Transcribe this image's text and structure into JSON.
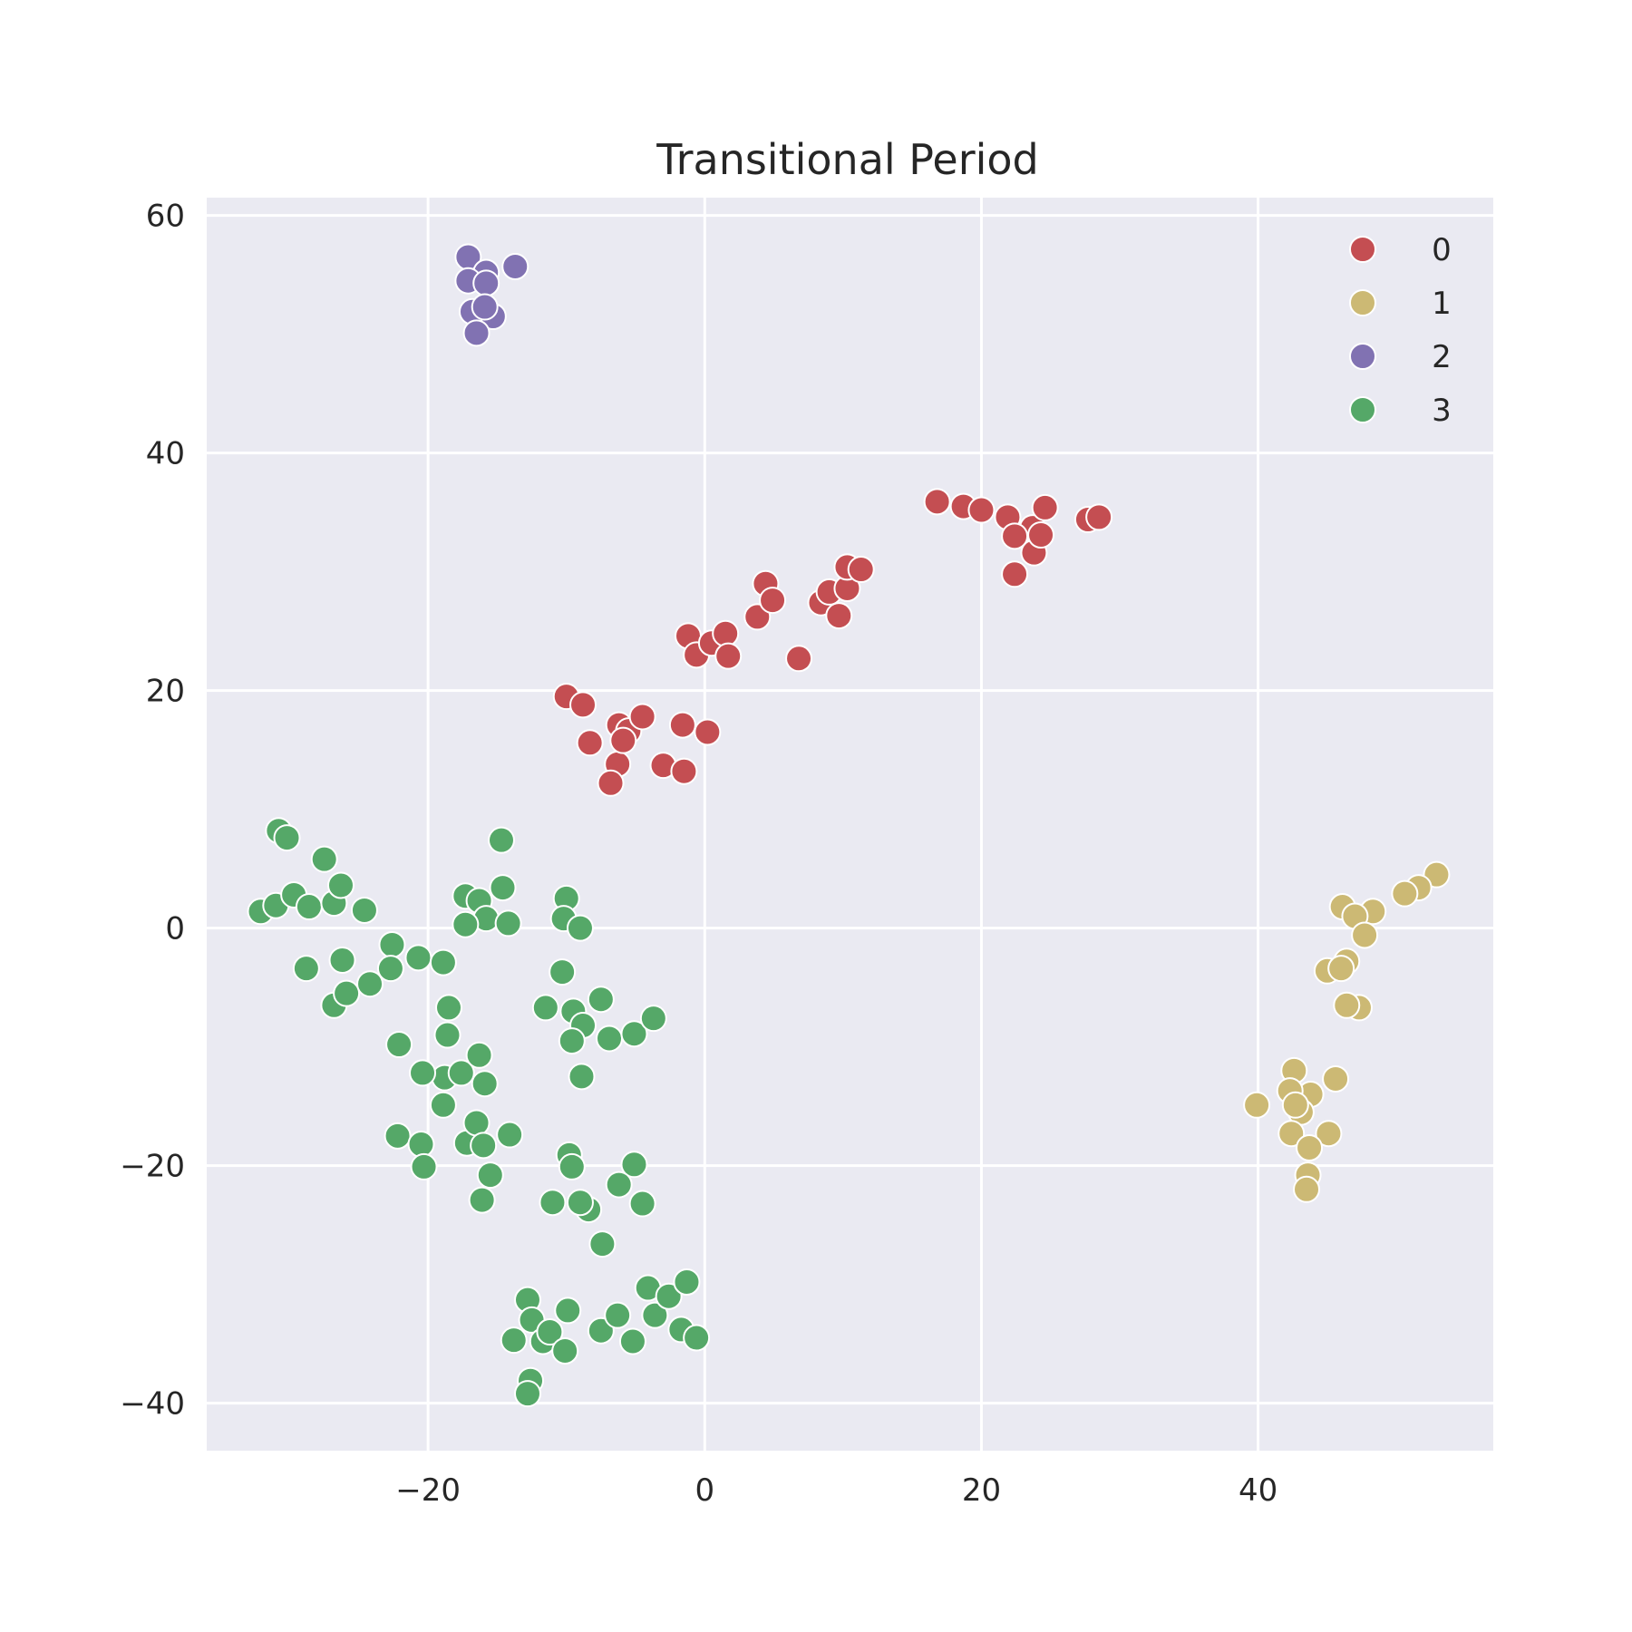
{
  "chart_data": {
    "type": "scatter",
    "title": "Transitional Period",
    "xlabel": "",
    "ylabel": "",
    "xlim": [
      -36,
      57
    ],
    "ylim": [
      -44,
      61.5
    ],
    "xticks": [
      -20,
      0,
      20,
      40
    ],
    "yticks": [
      -40,
      -20,
      0,
      20,
      40,
      60
    ],
    "xtick_labels": [
      "−20",
      "0",
      "20",
      "40"
    ],
    "ytick_labels": [
      "−40",
      "−20",
      "0",
      "20",
      "40",
      "60"
    ],
    "grid": true,
    "background": "#eaeaf2",
    "legend_position": "top-right",
    "series": [
      {
        "name": "0",
        "color": "#c44e52",
        "points": [
          [
            -10,
            19.5
          ],
          [
            -8.8,
            18.8
          ],
          [
            -8.3,
            15.6
          ],
          [
            -6.2,
            17.1
          ],
          [
            -5.5,
            16.6
          ],
          [
            -4.5,
            17.8
          ],
          [
            -6.3,
            13.8
          ],
          [
            -5.9,
            15.8
          ],
          [
            -6.8,
            12.2
          ],
          [
            -3,
            13.7
          ],
          [
            -1.5,
            13.2
          ],
          [
            -1.6,
            17.1
          ],
          [
            0.2,
            16.5
          ],
          [
            -1.2,
            24.6
          ],
          [
            -0.6,
            23
          ],
          [
            0.5,
            24
          ],
          [
            1.5,
            24.8
          ],
          [
            1.7,
            22.9
          ],
          [
            3.8,
            26.2
          ],
          [
            4.4,
            29
          ],
          [
            4.9,
            27.6
          ],
          [
            6.8,
            22.7
          ],
          [
            8.4,
            27.4
          ],
          [
            9.7,
            26.3
          ],
          [
            9,
            28.3
          ],
          [
            10.3,
            28.6
          ],
          [
            10.3,
            30.4
          ],
          [
            11.3,
            30.2
          ],
          [
            16.8,
            35.9
          ],
          [
            18.7,
            35.5
          ],
          [
            20,
            35.2
          ],
          [
            21.9,
            34.6
          ],
          [
            23.7,
            33.7
          ],
          [
            24.6,
            35.4
          ],
          [
            22.4,
            33
          ],
          [
            23.8,
            31.6
          ],
          [
            24.3,
            33.1
          ],
          [
            22.4,
            29.8
          ],
          [
            27.7,
            34.4
          ],
          [
            28.5,
            34.6
          ]
        ]
      },
      {
        "name": "1",
        "color": "#ccb974",
        "points": [
          [
            52.9,
            4.5
          ],
          [
            51.6,
            3.4
          ],
          [
            50.6,
            2.9
          ],
          [
            48.3,
            1.4
          ],
          [
            46.1,
            1.8
          ],
          [
            47,
            1
          ],
          [
            47.7,
            -0.6
          ],
          [
            46.4,
            -2.8
          ],
          [
            45,
            -3.6
          ],
          [
            46,
            -3.4
          ],
          [
            47.3,
            -6.7
          ],
          [
            46.4,
            -6.5
          ],
          [
            42.6,
            -12
          ],
          [
            45.6,
            -12.7
          ],
          [
            43.8,
            -14
          ],
          [
            42.3,
            -13.7
          ],
          [
            43.1,
            -15.5
          ],
          [
            42.7,
            -14.9
          ],
          [
            39.9,
            -14.9
          ],
          [
            42.4,
            -17.3
          ],
          [
            45.1,
            -17.3
          ],
          [
            43.7,
            -18.5
          ],
          [
            43.6,
            -20.8
          ],
          [
            43.5,
            -22
          ]
        ]
      },
      {
        "name": "2",
        "color": "#8172b2",
        "points": [
          [
            -17.1,
            56.5
          ],
          [
            -13.7,
            55.7
          ],
          [
            -15.8,
            55.2
          ],
          [
            -17.1,
            54.5
          ],
          [
            -15.8,
            54.3
          ],
          [
            -15.3,
            51.5
          ],
          [
            -16.8,
            51.9
          ],
          [
            -15.9,
            52.3
          ],
          [
            -16.5,
            50.1
          ]
        ]
      },
      {
        "name": "3",
        "color": "#55a868",
        "points": [
          [
            -30.8,
            8.2
          ],
          [
            -30.2,
            7.6
          ],
          [
            -27.5,
            5.8
          ],
          [
            -32.1,
            1.4
          ],
          [
            -31,
            1.9
          ],
          [
            -29.7,
            2.8
          ],
          [
            -28.6,
            1.8
          ],
          [
            -26.8,
            2.1
          ],
          [
            -26.3,
            3.6
          ],
          [
            -24.6,
            1.5
          ],
          [
            -28.8,
            -3.4
          ],
          [
            -26.2,
            -2.7
          ],
          [
            -26.8,
            -6.5
          ],
          [
            -25.9,
            -5.5
          ],
          [
            -24.2,
            -4.7
          ],
          [
            -22.6,
            -1.4
          ],
          [
            -22.7,
            -3.4
          ],
          [
            -20.7,
            -2.5
          ],
          [
            -18.9,
            -2.9
          ],
          [
            -18.8,
            -12.6
          ],
          [
            -20.4,
            -12.2
          ],
          [
            -17.6,
            -12.2
          ],
          [
            -18.5,
            -6.7
          ],
          [
            -18.6,
            -9
          ],
          [
            -22.1,
            -9.8
          ],
          [
            -16.3,
            -10.7
          ],
          [
            -15.9,
            -13.1
          ],
          [
            -18.9,
            -14.9
          ],
          [
            -22.2,
            -17.5
          ],
          [
            -20.5,
            -18.2
          ],
          [
            -20.3,
            -20.1
          ],
          [
            -17.2,
            -18.1
          ],
          [
            -16.5,
            -16.4
          ],
          [
            -16,
            -18.3
          ],
          [
            -15.5,
            -20.8
          ],
          [
            -16.1,
            -22.9
          ],
          [
            -14.1,
            -17.4
          ],
          [
            -17.3,
            2.7
          ],
          [
            -16.3,
            2.3
          ],
          [
            -15.8,
            0.8
          ],
          [
            -17.3,
            0.3
          ],
          [
            -14.6,
            3.4
          ],
          [
            -14.2,
            0.4
          ],
          [
            -14.7,
            7.4
          ],
          [
            -10,
            2.5
          ],
          [
            -10.2,
            0.8
          ],
          [
            -9,
            0
          ],
          [
            -10.3,
            -3.7
          ],
          [
            -11.5,
            -6.7
          ],
          [
            -9.5,
            -7
          ],
          [
            -8.8,
            -8.2
          ],
          [
            -7.5,
            -6
          ],
          [
            -9.6,
            -9.5
          ],
          [
            -6.9,
            -9.3
          ],
          [
            -5.1,
            -8.9
          ],
          [
            -3.7,
            -7.6
          ],
          [
            -8.9,
            -12.5
          ],
          [
            -9.8,
            -19.1
          ],
          [
            -9.6,
            -20.1
          ],
          [
            -5.1,
            -19.9
          ],
          [
            -6.2,
            -21.6
          ],
          [
            -4.5,
            -23.2
          ],
          [
            -11,
            -23.1
          ],
          [
            -8.4,
            -23.7
          ],
          [
            -9,
            -23.1
          ],
          [
            -7.4,
            -26.6
          ],
          [
            -12.8,
            -31.3
          ],
          [
            -12.5,
            -33
          ],
          [
            -13.8,
            -34.7
          ],
          [
            -11.7,
            -34.8
          ],
          [
            -11.2,
            -34
          ],
          [
            -10.1,
            -35.6
          ],
          [
            -9.9,
            -32.2
          ],
          [
            -7.5,
            -33.9
          ],
          [
            -6.3,
            -32.6
          ],
          [
            -5.2,
            -34.8
          ],
          [
            -4.1,
            -30.3
          ],
          [
            -3.6,
            -32.6
          ],
          [
            -2.6,
            -31
          ],
          [
            -1.3,
            -29.8
          ],
          [
            -1.7,
            -33.8
          ],
          [
            -0.6,
            -34.5
          ],
          [
            -12.6,
            -38.1
          ],
          [
            -12.8,
            -39.2
          ]
        ]
      }
    ]
  }
}
